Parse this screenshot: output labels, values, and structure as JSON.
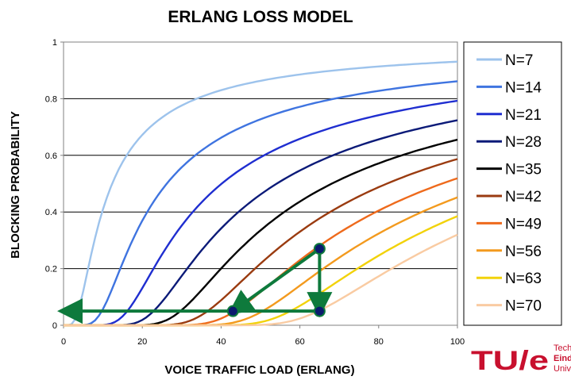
{
  "chart_data": {
    "type": "line",
    "title": "ERLANG LOSS MODEL",
    "xlabel": "VOICE TRAFFIC LOAD (ERLANG)",
    "ylabel": "BLOCKING PROBABILITY",
    "xlim": [
      0,
      100
    ],
    "ylim": [
      0,
      1
    ],
    "x_ticks": [
      0,
      20,
      40,
      60,
      80,
      100
    ],
    "y_ticks": [
      0,
      0.2,
      0.4,
      0.6,
      0.8,
      1
    ],
    "grid": "horizontal",
    "legend_position": "right",
    "series": [
      {
        "name": "N=7",
        "servers": 7,
        "color": "#9dc3ec"
      },
      {
        "name": "N=14",
        "servers": 14,
        "color": "#3f74e0"
      },
      {
        "name": "N=21",
        "servers": 21,
        "color": "#1f2ed0"
      },
      {
        "name": "N=28",
        "servers": 28,
        "color": "#0b1a78"
      },
      {
        "name": "N=35",
        "servers": 35,
        "color": "#000000"
      },
      {
        "name": "N=42",
        "servers": 42,
        "color": "#9a3b10"
      },
      {
        "name": "N=49",
        "servers": 49,
        "color": "#ee6a1c"
      },
      {
        "name": "N=56",
        "servers": 56,
        "color": "#f39a1e"
      },
      {
        "name": "N=63",
        "servers": 63,
        "color": "#f2d20a"
      },
      {
        "name": "N=70",
        "servers": 70,
        "color": "#f9cba2"
      }
    ],
    "annotation": {
      "color": "#0e7a3c",
      "marker_color": "#0b1a6e",
      "points": [
        {
          "x": 65,
          "y": 0.27
        },
        {
          "x": 65,
          "y": 0.05
        },
        {
          "x": 43,
          "y": 0.05
        }
      ],
      "arrows": [
        {
          "from": {
            "x": 65,
            "y": 0.27
          },
          "to": {
            "x": 65,
            "y": 0.05
          }
        },
        {
          "from": {
            "x": 65,
            "y": 0.27
          },
          "to": {
            "x": 43,
            "y": 0.05
          }
        },
        {
          "from": {
            "x": 65,
            "y": 0.05
          },
          "to": {
            "x": 0,
            "y": 0.05
          }
        }
      ]
    }
  },
  "logo": {
    "mark": "TU/e",
    "line1": "Tech",
    "line2": "Eind",
    "line3": "Univ"
  }
}
